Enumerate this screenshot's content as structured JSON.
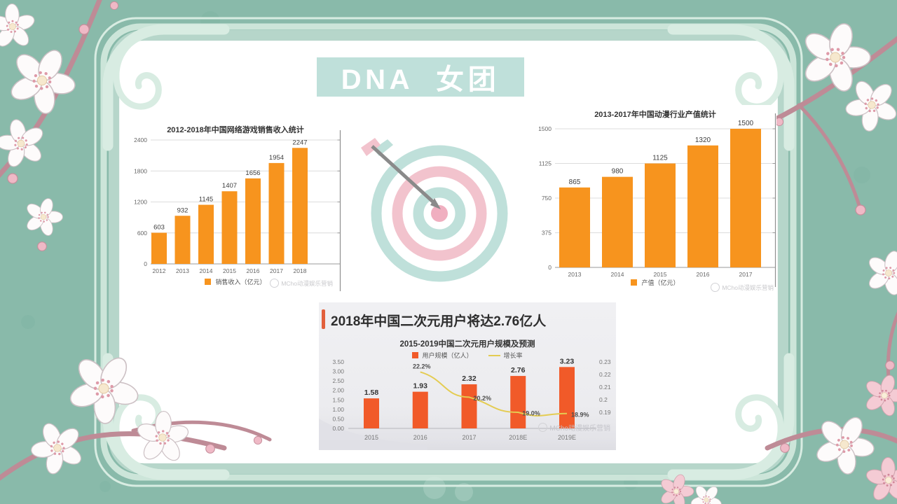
{
  "title_block": {
    "text": "DNA  女团"
  },
  "watermark_text": "MCho动漫娱乐营销",
  "colors": {
    "slide_background_teal": "#89BAAA",
    "frame_mint": "#D8ECE2",
    "title_block_bg": "#BFE0DA",
    "top_charts_bar_orange": "#F7941E",
    "bottom_chart_bar_red_orange": "#F15A29",
    "growth_line_yellow": "#E4CC52",
    "accent_bar_red": "#E2603C",
    "target_ring_teal": "#BFE0DA",
    "target_ring_pink": "#F2C3CD"
  },
  "chart_data": [
    {
      "type": "bar",
      "title": "2012-2018年中国网络游戏销售收入统计",
      "categories": [
        "2012",
        "2013",
        "2014",
        "2015",
        "2016",
        "2017",
        "2018"
      ],
      "values": [
        603,
        932,
        1145,
        1407,
        1656,
        1954,
        2247
      ],
      "legend": "销售收入（亿元）",
      "xlabel": "",
      "ylabel": "",
      "ylim": [
        0,
        2400
      ],
      "yticks": [
        0,
        600,
        1200,
        1800,
        2400
      ],
      "grid": true,
      "legend_position": "bottom",
      "bar_color": "#F7941E"
    },
    {
      "type": "bar",
      "title": "2013-2017年中国动漫行业产值统计",
      "categories": [
        "2013",
        "2014",
        "2015",
        "2016",
        "2017"
      ],
      "values": [
        865,
        980,
        1125,
        1320,
        1500
      ],
      "legend": "产值（亿元）",
      "xlabel": "",
      "ylabel": "",
      "ylim": [
        0,
        1500
      ],
      "yticks": [
        0,
        375,
        750,
        1125,
        1500
      ],
      "grid": true,
      "legend_position": "bottom",
      "bar_color": "#F7941E"
    },
    {
      "type": "bar+line",
      "header": "2018年中国二次元用户将达2.76亿人",
      "title": "2015-2019中国二次元用户规模及预测",
      "categories": [
        "2015",
        "2016",
        "2017",
        "2018E",
        "2019E"
      ],
      "series": [
        {
          "name": "用户规模（亿人）",
          "type": "bar",
          "axis": "left",
          "color": "#F15A29",
          "values": [
            1.58,
            1.93,
            2.32,
            2.76,
            3.23
          ]
        },
        {
          "name": "增长率",
          "type": "line",
          "axis": "right",
          "color": "#E4CC52",
          "values": [
            null,
            0.222,
            0.202,
            0.19,
            0.189
          ],
          "point_labels": [
            "",
            "22.2%",
            "20.2%",
            "19.0%",
            "18.9%"
          ]
        }
      ],
      "left_axis": {
        "tick_labels": [
          "3.50",
          "3.00",
          "2.50",
          "2.00",
          "1.50",
          "1.00",
          "0.50",
          "0.00"
        ],
        "min": 0,
        "max": 3.5
      },
      "right_axis": {
        "tick_labels": [
          "0.23",
          "0.22",
          "0.21",
          "0.2",
          "0.19"
        ],
        "top_value": 0.23,
        "step": 0.01
      },
      "grid": false,
      "legend_position": "top"
    }
  ]
}
